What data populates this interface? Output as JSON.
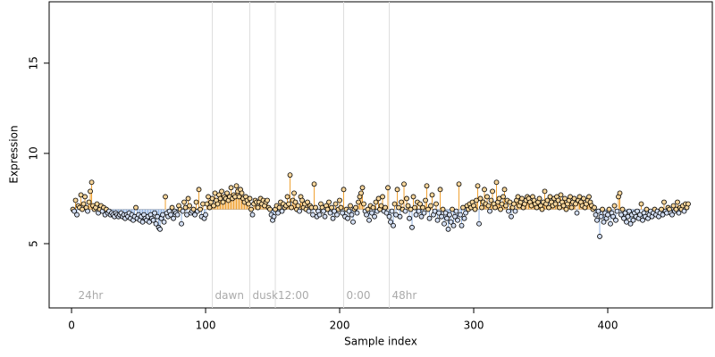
{
  "chart_data": {
    "type": "lollipop-scatter",
    "xlabel": "Sample index",
    "ylabel": "Expression",
    "xlim": [
      -16.7,
      478
    ],
    "ylim": [
      1.44,
      18.4
    ],
    "xticks": [
      0,
      100,
      200,
      300,
      400
    ],
    "yticks": [
      5,
      10,
      15
    ],
    "baseline": 6.9,
    "above_color": "#f0a030",
    "below_color": "#8fb0e0",
    "above_fill": "#f7d59a",
    "below_fill": "#d3def2",
    "vline_color": "#dddddd",
    "vlines": [
      105,
      133,
      152,
      203,
      237
    ],
    "annotations": [
      {
        "x": 3,
        "y": 2.1,
        "label": "24hr"
      },
      {
        "x": 105,
        "y": 2.1,
        "label": "dawn"
      },
      {
        "x": 133,
        "y": 2.1,
        "label": "dusk"
      },
      {
        "x": 152,
        "y": 2.1,
        "label": "12:00"
      },
      {
        "x": 203,
        "y": 2.1,
        "label": "0:00"
      },
      {
        "x": 237,
        "y": 2.1,
        "label": "48hr"
      }
    ],
    "x": [
      1,
      2,
      3,
      4,
      5,
      6,
      7,
      8,
      9,
      10,
      11,
      12,
      13,
      14,
      15,
      16,
      17,
      18,
      19,
      20,
      21,
      22,
      23,
      24,
      25,
      26,
      27,
      28,
      29,
      30,
      31,
      32,
      33,
      34,
      35,
      36,
      37,
      38,
      39,
      40,
      41,
      42,
      43,
      44,
      45,
      46,
      47,
      48,
      49,
      50,
      51,
      52,
      53,
      54,
      55,
      56,
      57,
      58,
      59,
      60,
      61,
      62,
      63,
      64,
      65,
      66,
      67,
      68,
      69,
      70,
      71,
      72,
      73,
      74,
      75,
      76,
      77,
      78,
      79,
      80,
      81,
      82,
      83,
      84,
      85,
      86,
      87,
      88,
      89,
      90,
      91,
      92,
      93,
      94,
      95,
      96,
      97,
      98,
      99,
      100,
      101,
      102,
      103,
      104,
      105,
      106,
      107,
      108,
      109,
      110,
      111,
      112,
      113,
      114,
      115,
      116,
      117,
      118,
      119,
      120,
      121,
      122,
      123,
      124,
      125,
      126,
      127,
      128,
      129,
      130,
      131,
      132,
      133,
      134,
      135,
      136,
      137,
      138,
      139,
      140,
      141,
      142,
      143,
      144,
      145,
      146,
      147,
      148,
      149,
      150,
      151,
      152,
      153,
      154,
      155,
      156,
      157,
      158,
      159,
      160,
      161,
      162,
      163,
      164,
      165,
      166,
      167,
      168,
      169,
      170,
      171,
      172,
      173,
      174,
      175,
      176,
      177,
      178,
      179,
      180,
      181,
      182,
      183,
      184,
      185,
      186,
      187,
      188,
      189,
      190,
      191,
      192,
      193,
      194,
      195,
      196,
      197,
      198,
      199,
      200,
      201,
      202,
      203,
      204,
      205,
      206,
      207,
      208,
      209,
      210,
      211,
      212,
      213,
      214,
      215,
      216,
      217,
      218,
      219,
      220,
      221,
      222,
      223,
      224,
      225,
      226,
      227,
      228,
      229,
      230,
      231,
      232,
      233,
      234,
      235,
      236,
      237,
      238,
      239,
      240,
      241,
      242,
      243,
      244,
      245,
      246,
      247,
      248,
      249,
      250,
      251,
      252,
      253,
      254,
      255,
      256,
      257,
      258,
      259,
      260,
      261,
      262,
      263,
      264,
      265,
      266,
      267,
      268,
      269,
      270,
      271,
      272,
      273,
      274,
      275,
      276,
      277,
      278,
      279,
      280,
      281,
      282,
      283,
      284,
      285,
      286,
      287,
      288,
      289,
      290,
      291,
      292,
      293,
      294,
      295,
      296,
      297,
      298,
      299,
      300,
      301,
      302,
      303,
      304,
      305,
      306,
      307,
      308,
      309,
      310,
      311,
      312,
      313,
      314,
      315,
      316,
      317,
      318,
      319,
      320,
      321,
      322,
      323,
      324,
      325,
      326,
      327,
      328,
      329,
      330,
      331,
      332,
      333,
      334,
      335,
      336,
      337,
      338,
      339,
      340,
      341,
      342,
      343,
      344,
      345,
      346,
      347,
      348,
      349,
      350,
      351,
      352,
      353,
      354,
      355,
      356,
      357,
      358,
      359,
      360,
      361,
      362,
      363,
      364,
      365,
      366,
      367,
      368,
      369,
      370,
      371,
      372,
      373,
      374,
      375,
      376,
      377,
      378,
      379,
      380,
      381,
      382,
      383,
      384,
      385,
      386,
      387,
      388,
      389,
      390,
      391,
      392,
      393,
      394,
      395,
      396,
      397,
      398,
      399,
      400,
      401,
      402,
      403,
      404,
      405,
      406,
      407,
      408,
      409,
      410,
      411,
      412,
      413,
      414,
      415,
      416,
      417,
      418,
      419,
      420,
      421,
      422,
      423,
      424,
      425,
      426,
      427,
      428,
      429,
      430,
      431,
      432,
      433,
      434,
      435,
      436,
      437,
      438,
      439,
      440,
      441,
      442,
      443,
      444,
      445,
      446,
      447,
      448,
      449,
      450,
      451,
      452,
      453,
      454,
      455,
      456,
      457,
      458,
      459,
      460
    ],
    "values": [
      6.9,
      6.8,
      7.4,
      6.6,
      7.1,
      7.0,
      7.7,
      6.9,
      7.2,
      7.6,
      7.0,
      6.8,
      7.3,
      7.9,
      8.4,
      7.1,
      6.9,
      7.0,
      7.2,
      6.7,
      6.9,
      7.1,
      6.8,
      7.0,
      6.6,
      6.9,
      6.7,
      6.8,
      6.6,
      6.7,
      6.6,
      6.5,
      6.7,
      6.6,
      6.5,
      6.6,
      6.7,
      6.5,
      6.6,
      6.4,
      6.6,
      6.5,
      6.7,
      6.4,
      6.6,
      6.3,
      6.5,
      7.0,
      6.4,
      6.6,
      6.3,
      6.5,
      6.2,
      6.6,
      6.4,
      6.3,
      6.5,
      6.2,
      6.6,
      6.4,
      6.3,
      6.7,
      6.1,
      6.5,
      5.9,
      5.8,
      6.4,
      6.6,
      6.2,
      7.6,
      6.7,
      6.5,
      6.8,
      6.6,
      7.0,
      6.4,
      6.8,
      6.7,
      6.6,
      7.1,
      6.9,
      6.1,
      6.8,
      7.3,
      7.0,
      6.6,
      7.5,
      7.1,
      6.7,
      6.8,
      6.9,
      6.6,
      7.3,
      6.8,
      8.0,
      6.9,
      6.5,
      7.2,
      6.4,
      6.6,
      7.2,
      7.6,
      7.0,
      7.3,
      7.5,
      7.1,
      7.8,
      7.4,
      7.2,
      7.7,
      7.5,
      7.9,
      7.3,
      7.6,
      7.5,
      7.8,
      7.4,
      7.6,
      8.1,
      7.5,
      7.7,
      7.6,
      8.2,
      7.9,
      7.6,
      8.0,
      7.8,
      7.5,
      7.3,
      7.6,
      7.4,
      7.2,
      7.5,
      6.9,
      6.6,
      7.2,
      7.4,
      7.3,
      7.0,
      7.3,
      7.5,
      7.2,
      7.4,
      7.1,
      7.3,
      7.4,
      7.0,
      6.9,
      6.6,
      6.3,
      6.5,
      6.9,
      7.1,
      6.7,
      7.0,
      7.3,
      6.8,
      7.2,
      7.0,
      7.1,
      7.6,
      7.2,
      8.8,
      7.0,
      7.4,
      7.8,
      7.3,
      6.9,
      7.1,
      6.8,
      7.6,
      7.4,
      7.0,
      7.2,
      6.9,
      7.3,
      6.8,
      7.1,
      7.0,
      6.6,
      8.3,
      7.0,
      6.5,
      6.8,
      6.6,
      7.2,
      7.0,
      6.8,
      6.5,
      7.1,
      6.9,
      7.3,
      6.7,
      7.0,
      6.4,
      6.8,
      7.2,
      6.6,
      6.9,
      7.4,
      7.0,
      6.7,
      8.0,
      6.5,
      6.9,
      6.4,
      6.8,
      7.1,
      6.6,
      6.2,
      6.9,
      7.0,
      6.7,
      7.3,
      7.6,
      7.8,
      8.1,
      7.2,
      6.8,
      6.6,
      6.9,
      6.3,
      7.1,
      6.7,
      7.0,
      6.5,
      7.3,
      6.8,
      7.5,
      6.9,
      7.1,
      7.6,
      6.8,
      7.0,
      6.7,
      8.1,
      6.5,
      6.2,
      6.8,
      6.0,
      7.2,
      6.6,
      8.0,
      7.0,
      6.5,
      7.3,
      6.9,
      8.3,
      6.8,
      7.5,
      7.1,
      6.4,
      6.9,
      5.9,
      7.6,
      7.0,
      6.6,
      7.3,
      6.8,
      7.2,
      6.5,
      7.0,
      6.7,
      7.4,
      8.2,
      6.9,
      6.4,
      7.1,
      7.7,
      6.6,
      6.8,
      7.2,
      6.3,
      6.7,
      8.0,
      6.5,
      6.9,
      6.1,
      6.7,
      6.4,
      5.8,
      6.6,
      6.2,
      6.9,
      6.0,
      6.5,
      6.8,
      6.3,
      8.3,
      6.6,
      6.0,
      7.0,
      6.4,
      6.7,
      7.1,
      6.9,
      7.2,
      7.0,
      7.3,
      7.1,
      6.9,
      7.4,
      8.2,
      6.1,
      7.5,
      7.0,
      7.3,
      8.0,
      7.2,
      7.6,
      7.1,
      6.8,
      7.4,
      7.9,
      7.2,
      7.0,
      8.4,
      7.3,
      7.5,
      6.9,
      7.2,
      7.6,
      8.0,
      7.1,
      7.4,
      6.8,
      7.3,
      6.5,
      7.0,
      7.2,
      6.8,
      7.4,
      7.6,
      7.1,
      7.3,
      7.5,
      7.0,
      7.2,
      7.4,
      7.6,
      7.5,
      7.3,
      7.1,
      7.6,
      7.4,
      7.2,
      7.0,
      7.3,
      7.5,
      7.1,
      6.9,
      7.3,
      7.9,
      7.2,
      7.4,
      7.0,
      7.6,
      7.3,
      7.1,
      7.5,
      7.2,
      7.6,
      7.4,
      7.0,
      7.7,
      7.3,
      7.1,
      7.5,
      6.9,
      7.2,
      7.4,
      7.6,
      7.0,
      7.3,
      7.5,
      7.2,
      6.7,
      7.4,
      7.6,
      7.3,
      7.1,
      7.5,
      7.0,
      7.2,
      7.4,
      7.6,
      7.3,
      7.1,
      6.9,
      7.0,
      6.6,
      6.3,
      6.8,
      5.4,
      6.5,
      6.9,
      6.2,
      6.7,
      6.4,
      6.6,
      6.9,
      6.1,
      6.7,
      6.5,
      7.1,
      6.3,
      6.8,
      7.6,
      7.8,
      6.6,
      6.9,
      6.4,
      6.7,
      6.2,
      6.5,
      6.8,
      6.1,
      6.6,
      6.3,
      6.7,
      6.5,
      6.8,
      6.4,
      6.6,
      7.2,
      6.3,
      6.7,
      6.5,
      6.9,
      6.4,
      6.6,
      6.8,
      6.5,
      6.7,
      6.9,
      6.6,
      6.8,
      6.5,
      6.7,
      6.9,
      6.6,
      7.3,
      6.8,
      6.7,
      7.0,
      6.9,
      6.7,
      6.6,
      7.1,
      6.8,
      6.9,
      7.3,
      6.7,
      7.0,
      6.9,
      7.1,
      6.8,
      7.2,
      7.0,
      7.2
    ]
  }
}
